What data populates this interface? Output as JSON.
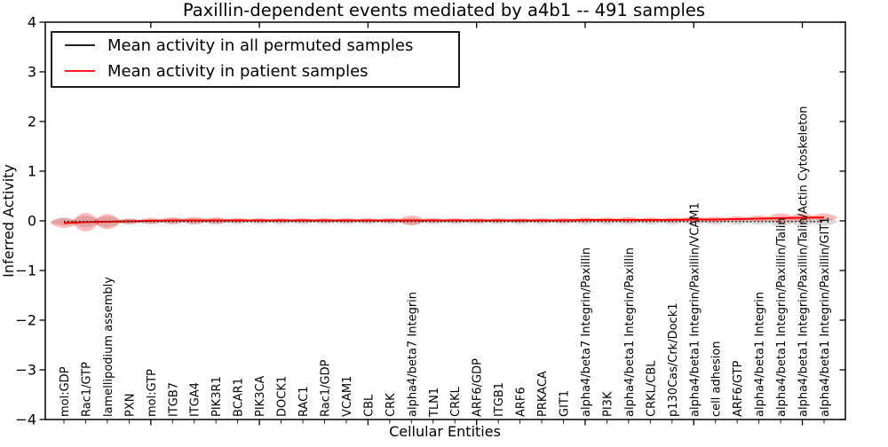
{
  "title": "Paxillin-dependent events mediated by a4b1 -- 491 samples",
  "axes": {
    "xlabel": "Cellular Entities",
    "ylabel": "Inferred Activity"
  },
  "legend": {
    "items": [
      {
        "label": "Mean activity in all permuted samples",
        "color": "#000000"
      },
      {
        "label": "Mean activity in patient samples",
        "color": "#ff0000"
      }
    ]
  },
  "chart_data": {
    "type": "violin",
    "title": "Paxillin-dependent events mediated by a4b1 -- 491 samples",
    "xlabel": "Cellular Entities",
    "ylabel": "Inferred Activity",
    "ylim": [
      -4,
      4
    ],
    "ytick_values": [
      4,
      3,
      2,
      1,
      0,
      -1,
      -2,
      -3,
      -4
    ],
    "ytick_labels": [
      "4",
      "3",
      "2",
      "1",
      "0",
      "−1",
      "−2",
      "−3",
      "−4"
    ],
    "xtick_major_indices": [
      5,
      10,
      15,
      20,
      25,
      30,
      35
    ],
    "grid": false,
    "legend_position": "upper left",
    "categories": [
      "mol:GDP",
      "Rac1/GTP",
      "lamellipodium assembly",
      "PXN",
      "mol:GTP",
      "ITGB7",
      "ITGA4",
      "PIK3R1",
      "BCAR1",
      "PIK3CA",
      "DOCK1",
      "RAC1",
      "Rac1/GDP",
      "VCAM1",
      "CBL",
      "CRK",
      "alpha4/beta7 Integrin",
      "TLN1",
      "CRKL",
      "ARF6/GDP",
      "ITGB1",
      "ARF6",
      "PRKACA",
      "GIT1",
      "alpha4/beta7 Integrin/Paxillin",
      "PI3K",
      "alpha4/beta1 Integrin/Paxillin",
      "CRKL/CBL",
      "p130Cas/Crk/Dock1",
      "alpha4/beta1 Integrin/Paxillin/VCAM1",
      "cell adhesion",
      "ARF6/GTP",
      "alpha4/beta1 Integrin",
      "alpha4/beta1 Integrin/Paxillin/Talin",
      "alpha4/beta1 Integrin/Paxillin/Talin/Actin Cytoskeleton",
      "alpha4/beta1 Integrin/Paxillin/GIT1"
    ],
    "series": [
      {
        "name": "Mean activity in all permuted samples",
        "color": "#000000",
        "line_style": "dotted",
        "means": [
          -0.014,
          -0.014,
          -0.014,
          -0.014,
          -0.014,
          -0.014,
          -0.014,
          -0.014,
          -0.014,
          -0.014,
          -0.014,
          -0.014,
          -0.014,
          -0.014,
          -0.014,
          -0.014,
          -0.014,
          -0.014,
          -0.014,
          -0.014,
          -0.014,
          -0.014,
          -0.014,
          -0.014,
          -0.014,
          -0.014,
          -0.014,
          -0.014,
          -0.014,
          -0.014,
          -0.014,
          -0.014,
          -0.014,
          -0.014,
          -0.014,
          -0.014
        ]
      },
      {
        "name": "Mean activity in patient samples",
        "color": "#ff0000",
        "line_style": "solid",
        "means": [
          -0.045,
          -0.027,
          -0.018,
          -0.009,
          0,
          0.009,
          0.009,
          0.009,
          0.009,
          0.009,
          0.009,
          0.009,
          0.009,
          0.009,
          0.009,
          0.009,
          0.009,
          0.009,
          0.009,
          0.009,
          0.009,
          0.009,
          0.009,
          0.009,
          0.018,
          0.018,
          0.018,
          0.018,
          0.018,
          0.027,
          0.027,
          0.036,
          0.045,
          0.054,
          0.063,
          0.07
        ]
      }
    ],
    "violins": [
      {
        "name": "permuted samples distribution",
        "color": "#aaaaaa",
        "opacity": 0.45,
        "center_series": 0,
        "half_heights": [
          0.08,
          0.116,
          0.107,
          0.057,
          0.057,
          0.061,
          0.061,
          0.061,
          0.057,
          0.057,
          0.057,
          0.057,
          0.057,
          0.057,
          0.057,
          0.057,
          0.071,
          0.057,
          0.057,
          0.057,
          0.057,
          0.057,
          0.057,
          0.057,
          0.059,
          0.059,
          0.061,
          0.059,
          0.059,
          0.063,
          0.063,
          0.063,
          0.064,
          0.098,
          0.089,
          0.086
        ]
      },
      {
        "name": "patient samples distribution",
        "color": "#ff2222",
        "opacity": 0.3,
        "center_series": 1,
        "half_heights": [
          0.098,
          0.188,
          0.152,
          0.054,
          0.057,
          0.064,
          0.071,
          0.064,
          0.046,
          0.043,
          0.043,
          0.043,
          0.043,
          0.043,
          0.043,
          0.046,
          0.098,
          0.046,
          0.043,
          0.043,
          0.043,
          0.043,
          0.043,
          0.046,
          0.05,
          0.05,
          0.057,
          0.05,
          0.05,
          0.061,
          0.057,
          0.057,
          0.064,
          0.098,
          0.089,
          0.08
        ]
      }
    ]
  }
}
